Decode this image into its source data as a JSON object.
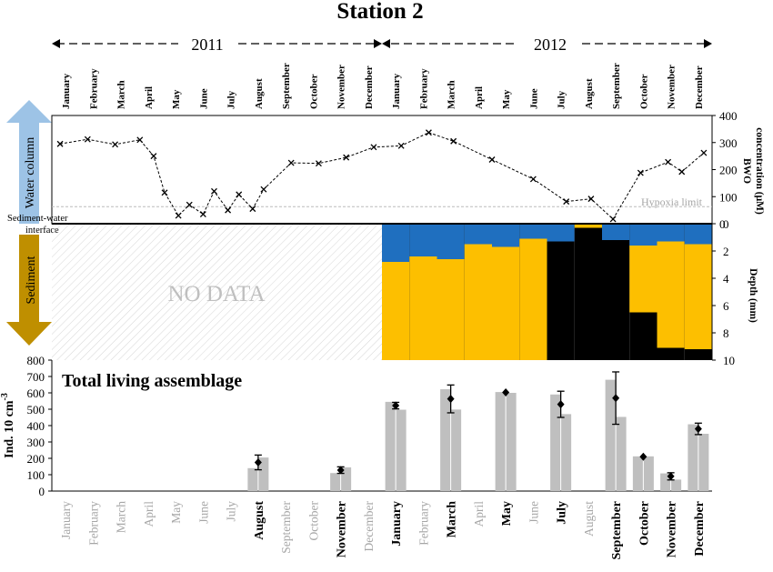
{
  "title": "Station 2",
  "years": [
    "2011",
    "2012"
  ],
  "months": [
    "January",
    "February",
    "March",
    "April",
    "May",
    "June",
    "July",
    "August",
    "September",
    "October",
    "November",
    "December"
  ],
  "labels": {
    "water_column": "Water column",
    "sediment": "Sediment",
    "interface_line1": "Sediment-water",
    "interface_line2": "interface",
    "no_data": "NO DATA",
    "hypoxia": "Hypoxia limit",
    "panel3_title": "Total living assemblage",
    "y3_label": "Ind. 10 cm",
    "y3_sup": "-3",
    "y1_label_line1": "BWO",
    "y1_label_line2": "concentration (μM)",
    "y2_label": "Depth (mm)"
  },
  "colors": {
    "blue": "#1f6fbf",
    "yellow": "#fdbf00",
    "black": "#000000",
    "bar": "#bfbfbf",
    "arrow_blue": "#9dc3e6",
    "arrow_brown": "#bf8f00"
  },
  "chart_data": [
    {
      "type": "line",
      "ylabel": "BWO concentration (μM)",
      "ylim": [
        0,
        400
      ],
      "yticks": [
        "0",
        "100",
        "200",
        "300",
        "400"
      ],
      "hypoxia_limit": 63,
      "x_range_months": [
        0,
        24
      ],
      "points": [
        {
          "x": 0.3,
          "y": 295
        },
        {
          "x": 1.3,
          "y": 312
        },
        {
          "x": 2.3,
          "y": 293
        },
        {
          "x": 3.2,
          "y": 310
        },
        {
          "x": 3.7,
          "y": 250
        },
        {
          "x": 4.1,
          "y": 115
        },
        {
          "x": 4.6,
          "y": 30
        },
        {
          "x": 5.0,
          "y": 70
        },
        {
          "x": 5.5,
          "y": 35
        },
        {
          "x": 5.9,
          "y": 120
        },
        {
          "x": 6.4,
          "y": 50
        },
        {
          "x": 6.8,
          "y": 108
        },
        {
          "x": 7.3,
          "y": 55
        },
        {
          "x": 7.7,
          "y": 127
        },
        {
          "x": 8.7,
          "y": 225
        },
        {
          "x": 9.7,
          "y": 223
        },
        {
          "x": 10.7,
          "y": 245
        },
        {
          "x": 11.7,
          "y": 283
        },
        {
          "x": 12.7,
          "y": 288
        },
        {
          "x": 13.7,
          "y": 337
        },
        {
          "x": 14.6,
          "y": 305
        },
        {
          "x": 16.0,
          "y": 237
        },
        {
          "x": 17.5,
          "y": 165
        },
        {
          "x": 18.7,
          "y": 82
        },
        {
          "x": 19.6,
          "y": 92
        },
        {
          "x": 20.4,
          "y": 17
        },
        {
          "x": 21.4,
          "y": 188
        },
        {
          "x": 22.4,
          "y": 228
        },
        {
          "x": 22.9,
          "y": 192
        },
        {
          "x": 23.7,
          "y": 262
        }
      ]
    },
    {
      "type": "area",
      "ylabel": "Depth (mm)",
      "ylim": [
        0,
        10
      ],
      "yticks": [
        "0",
        "2",
        "4",
        "6",
        "8",
        "10"
      ],
      "no_data_range_months": [
        0,
        12
      ],
      "segments": [
        {
          "start": 12,
          "end": 13,
          "blue_bottom": 2.8,
          "yellow_bottom": 10
        },
        {
          "start": 13,
          "end": 14,
          "blue_bottom": 2.4,
          "yellow_bottom": 10
        },
        {
          "start": 14,
          "end": 15,
          "blue_bottom": 2.6,
          "yellow_bottom": 10
        },
        {
          "start": 15,
          "end": 16,
          "blue_bottom": 1.5,
          "yellow_bottom": 10
        },
        {
          "start": 16,
          "end": 17,
          "blue_bottom": 1.7,
          "yellow_bottom": 10
        },
        {
          "start": 17,
          "end": 18,
          "blue_bottom": 1.1,
          "yellow_bottom": 10
        },
        {
          "start": 18,
          "end": 19,
          "blue_bottom": 1.3,
          "yellow_bottom": 1.3
        },
        {
          "start": 19,
          "end": 20,
          "blue_bottom": 0,
          "yellow_bottom": 0.3
        },
        {
          "start": 20,
          "end": 21,
          "blue_bottom": 1.2,
          "yellow_bottom": 1.2
        },
        {
          "start": 21,
          "end": 22,
          "blue_bottom": 1.6,
          "yellow_bottom": 6.5
        },
        {
          "start": 22,
          "end": 23,
          "blue_bottom": 1.3,
          "yellow_bottom": 9.1
        },
        {
          "start": 23,
          "end": 24,
          "blue_bottom": 1.5,
          "yellow_bottom": 9.2
        }
      ]
    },
    {
      "type": "bar",
      "title": "Total living assemblage",
      "ylabel": "Ind. 10 cm-3",
      "ylim": [
        0,
        800
      ],
      "yticks": [
        "0",
        "100",
        "200",
        "300",
        "400",
        "500",
        "600",
        "700",
        "800"
      ],
      "bold_months": [
        7,
        10,
        12,
        14,
        16,
        18,
        20,
        21,
        22,
        23
      ],
      "bars": [
        {
          "month": 7,
          "values": [
            140,
            205
          ],
          "mean": 175,
          "err": 45
        },
        {
          "month": 10,
          "values": [
            110,
            145
          ],
          "mean": 128,
          "err": 20
        },
        {
          "month": 12,
          "values": [
            545,
            497
          ],
          "mean": 522,
          "err": 20
        },
        {
          "month": 14,
          "values": [
            622,
            498
          ],
          "mean": 563,
          "err": 85
        },
        {
          "month": 16,
          "values": [
            605,
            600
          ],
          "mean": 603,
          "err": 0
        },
        {
          "month": 18,
          "values": [
            590,
            470
          ],
          "mean": 530,
          "err": 80
        },
        {
          "month": 20,
          "values": [
            680,
            453
          ],
          "mean": 568,
          "err": 160
        },
        {
          "month": 21,
          "values": [
            212,
            212
          ],
          "mean": 210,
          "err": 0
        },
        {
          "month": 22,
          "values": [
            108,
            70
          ],
          "mean": 90,
          "err": 22
        },
        {
          "month": 23,
          "values": [
            408,
            350
          ],
          "mean": 380,
          "err": 35
        }
      ]
    }
  ]
}
